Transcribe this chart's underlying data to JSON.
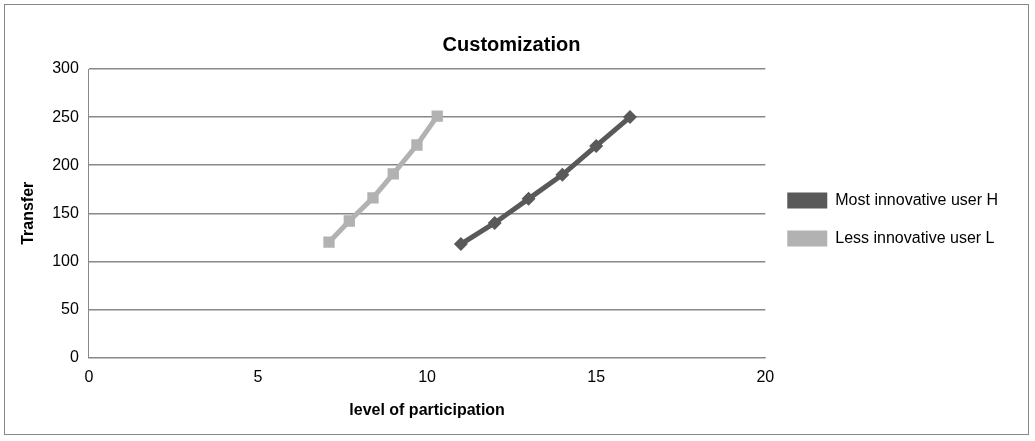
{
  "chart_data": {
    "type": "line",
    "title": "Customization",
    "xlabel": "level of participation",
    "ylabel": "Transfer",
    "series": [
      {
        "name": "Most innovative user H",
        "color": "#595959",
        "marker": "diamond",
        "x": [
          11,
          12,
          13,
          14,
          15,
          16
        ],
        "values": [
          118,
          140,
          165,
          190,
          220,
          250
        ]
      },
      {
        "name": "Less innovative user L",
        "color": "#b2b2b2",
        "marker": "square",
        "x": [
          7.1,
          7.7,
          8.4,
          9.0,
          9.7,
          10.3
        ],
        "values": [
          120,
          142,
          166,
          191,
          221,
          251
        ]
      }
    ],
    "xlim": [
      0,
      20
    ],
    "xticks": [
      0,
      5,
      10,
      15,
      20
    ],
    "ylim": [
      0,
      300
    ],
    "yticks": [
      0,
      50,
      100,
      150,
      200,
      250,
      300
    ],
    "grid": "y",
    "legend": "right"
  }
}
